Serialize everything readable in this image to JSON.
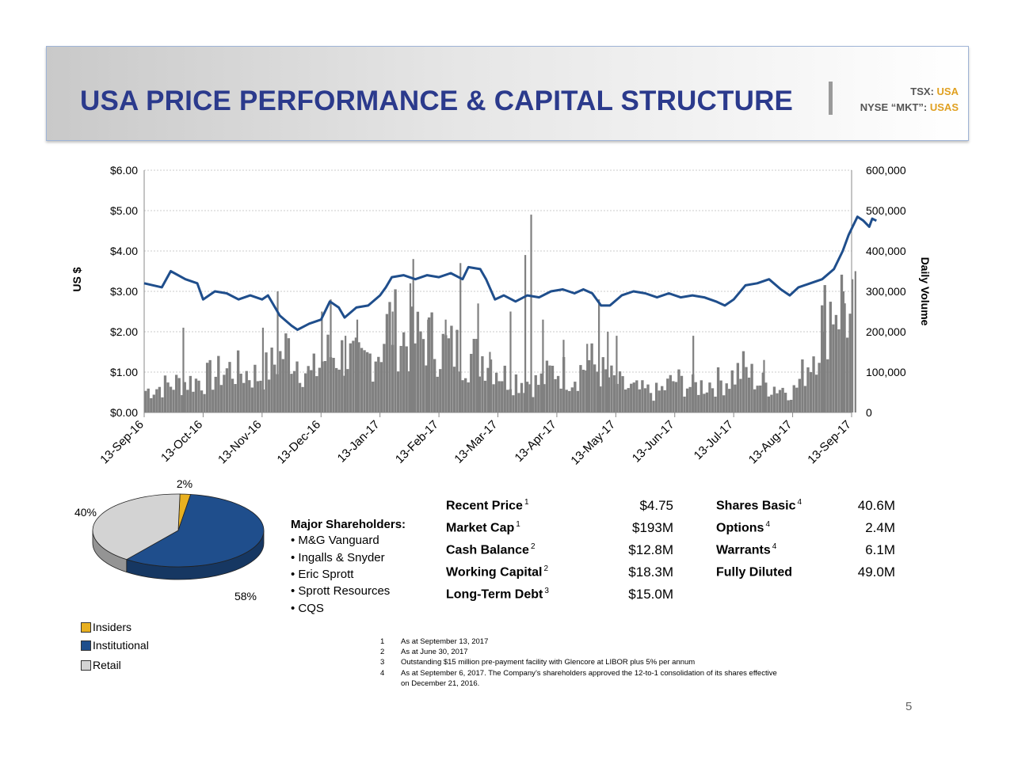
{
  "header": {
    "title": "USA PRICE PERFORMANCE & CAPITAL STRUCTURE",
    "tsx_label": "TSX:",
    "tsx_symbol": "USA",
    "nyse_label": "NYSE “MKT”:",
    "nyse_symbol": "USAS"
  },
  "chart_data": [
    {
      "type": "line",
      "ylabel": "US $",
      "y2label": "Daily Volume",
      "ylim": [
        0,
        6
      ],
      "y2lim": [
        0,
        600000
      ],
      "y_ticks": [
        "$0.00",
        "$1.00",
        "$2.00",
        "$3.00",
        "$4.00",
        "$5.00",
        "$6.00"
      ],
      "y2_ticks": [
        "0",
        "100,000",
        "200,000",
        "300,000",
        "400,000",
        "500,000",
        "600,000"
      ],
      "x_ticks": [
        "13-Sep-16",
        "13-Oct-16",
        "13-Nov-16",
        "13-Dec-16",
        "13-Jan-17",
        "13-Feb-17",
        "13-Mar-17",
        "13-Apr-17",
        "13-May-17",
        "13-Jun-17",
        "13-Jul-17",
        "13-Aug-17",
        "13-Sep-17"
      ],
      "grid": true,
      "series": [
        {
          "kind": "line",
          "color": "#1f4e8c",
          "points": [
            [
              0,
              3.2
            ],
            [
              0.3,
              3.1
            ],
            [
              0.45,
              3.5
            ],
            [
              0.7,
              3.3
            ],
            [
              0.9,
              3.2
            ],
            [
              1.0,
              2.8
            ],
            [
              1.2,
              3.0
            ],
            [
              1.4,
              2.95
            ],
            [
              1.6,
              2.8
            ],
            [
              1.8,
              2.9
            ],
            [
              2.0,
              2.8
            ],
            [
              2.1,
              2.9
            ],
            [
              2.3,
              2.4
            ],
            [
              2.5,
              2.15
            ],
            [
              2.6,
              2.05
            ],
            [
              2.8,
              2.2
            ],
            [
              3.0,
              2.3
            ],
            [
              3.15,
              2.75
            ],
            [
              3.3,
              2.6
            ],
            [
              3.4,
              2.35
            ],
            [
              3.6,
              2.6
            ],
            [
              3.8,
              2.65
            ],
            [
              4.0,
              2.9
            ],
            [
              4.1,
              3.1
            ],
            [
              4.2,
              3.35
            ],
            [
              4.4,
              3.4
            ],
            [
              4.6,
              3.3
            ],
            [
              4.8,
              3.4
            ],
            [
              5.0,
              3.35
            ],
            [
              5.2,
              3.45
            ],
            [
              5.4,
              3.3
            ],
            [
              5.5,
              3.6
            ],
            [
              5.7,
              3.55
            ],
            [
              5.8,
              3.3
            ],
            [
              5.95,
              2.8
            ],
            [
              6.1,
              2.9
            ],
            [
              6.3,
              2.75
            ],
            [
              6.5,
              2.9
            ],
            [
              6.7,
              2.85
            ],
            [
              6.9,
              3.0
            ],
            [
              7.1,
              3.05
            ],
            [
              7.3,
              2.95
            ],
            [
              7.45,
              3.05
            ],
            [
              7.6,
              2.95
            ],
            [
              7.75,
              2.65
            ],
            [
              7.9,
              2.65
            ],
            [
              8.1,
              2.9
            ],
            [
              8.3,
              3.0
            ],
            [
              8.5,
              2.95
            ],
            [
              8.7,
              2.85
            ],
            [
              8.9,
              2.95
            ],
            [
              9.1,
              2.85
            ],
            [
              9.3,
              2.9
            ],
            [
              9.5,
              2.85
            ],
            [
              9.7,
              2.75
            ],
            [
              9.85,
              2.65
            ],
            [
              10.0,
              2.8
            ],
            [
              10.2,
              3.15
            ],
            [
              10.4,
              3.2
            ],
            [
              10.6,
              3.3
            ],
            [
              10.8,
              3.05
            ],
            [
              10.95,
              2.9
            ],
            [
              11.1,
              3.1
            ],
            [
              11.3,
              3.2
            ],
            [
              11.5,
              3.3
            ],
            [
              11.7,
              3.55
            ],
            [
              11.85,
              4.0
            ],
            [
              11.95,
              4.4
            ],
            [
              12.1,
              4.85
            ],
            [
              12.2,
              4.75
            ],
            [
              12.3,
              4.6
            ],
            [
              12.35,
              4.8
            ],
            [
              12.42,
              4.75
            ]
          ]
        },
        {
          "kind": "bar",
          "color": "#808080",
          "volume_profile": [
            [
              0,
              60000
            ],
            [
              0.5,
              80000
            ],
            [
              1.0,
              90000
            ],
            [
              1.5,
              120000
            ],
            [
              2.0,
              100000
            ],
            [
              2.3,
              140000
            ],
            [
              2.5,
              180000
            ],
            [
              2.9,
              100000
            ],
            [
              3.2,
              160000
            ],
            [
              3.5,
              160000
            ],
            [
              3.8,
              130000
            ],
            [
              4.1,
              180000
            ],
            [
              4.3,
              250000
            ],
            [
              4.6,
              190000
            ],
            [
              4.9,
              210000
            ],
            [
              5.2,
              180000
            ],
            [
              5.5,
              170000
            ],
            [
              5.8,
              150000
            ],
            [
              6.0,
              160000
            ],
            [
              6.3,
              100000
            ],
            [
              6.6,
              90000
            ],
            [
              6.9,
              80000
            ],
            [
              7.2,
              120000
            ],
            [
              7.5,
              100000
            ],
            [
              7.8,
              140000
            ],
            [
              8.1,
              100000
            ],
            [
              8.4,
              70000
            ],
            [
              8.7,
              60000
            ],
            [
              9.0,
              55000
            ],
            [
              9.3,
              90000
            ],
            [
              9.6,
              70000
            ],
            [
              9.9,
              80000
            ],
            [
              10.2,
              90000
            ],
            [
              10.5,
              120000
            ],
            [
              10.8,
              80000
            ],
            [
              11.1,
              70000
            ],
            [
              11.4,
              60000
            ],
            [
              11.7,
              160000
            ],
            [
              11.9,
              250000
            ],
            [
              12.1,
              320000
            ],
            [
              12.3,
              300000
            ],
            [
              12.42,
              200000
            ]
          ],
          "volume_spikes": [
            [
              0.65,
              210000
            ],
            [
              2.0,
              210000
            ],
            [
              2.25,
              300000
            ],
            [
              3.0,
              250000
            ],
            [
              3.15,
              280000
            ],
            [
              3.4,
              190000
            ],
            [
              3.6,
              230000
            ],
            [
              4.2,
              250000
            ],
            [
              4.5,
              320000
            ],
            [
              4.55,
              380000
            ],
            [
              4.8,
              230000
            ],
            [
              5.1,
              230000
            ],
            [
              5.35,
              370000
            ],
            [
              5.65,
              270000
            ],
            [
              5.85,
              150000
            ],
            [
              6.2,
              250000
            ],
            [
              6.45,
              390000
            ],
            [
              6.55,
              490000
            ],
            [
              6.75,
              230000
            ],
            [
              7.1,
              180000
            ],
            [
              7.5,
              170000
            ],
            [
              7.7,
              280000
            ],
            [
              7.85,
              200000
            ],
            [
              8.0,
              190000
            ],
            [
              9.3,
              190000
            ],
            [
              10.5,
              130000
            ],
            [
              11.25,
              110000
            ],
            [
              11.5,
              200000
            ],
            [
              11.85,
              300000
            ],
            [
              12.0,
              330000
            ],
            [
              12.05,
              350000
            ]
          ]
        }
      ]
    },
    {
      "type": "pie",
      "slices": [
        {
          "name": "Insiders",
          "value": 2,
          "label": "2%",
          "color": "#e8b020"
        },
        {
          "name": "Institutional",
          "value": 58,
          "label": "58%",
          "color": "#1f4e8c"
        },
        {
          "name": "Retail",
          "value": 40,
          "label": "40%",
          "color": "#d3d3d3"
        }
      ]
    }
  ],
  "shareholders": {
    "title": "Major Shareholders:",
    "items": [
      "M&G Vanguard",
      "Ingalls & Snyder",
      "Eric Sprott",
      "Sprott Resources",
      "CQS"
    ]
  },
  "financials": [
    {
      "label": "Recent Price",
      "note": "1",
      "value": "$4.75"
    },
    {
      "label": "Market Cap",
      "note": "1",
      "value": "$193M"
    },
    {
      "label": "Cash Balance",
      "note": "2",
      "value": "$12.8M"
    },
    {
      "label": "Working Capital",
      "note": "2",
      "value": "$18.3M"
    },
    {
      "label": "Long-Term Debt",
      "note": "3",
      "value": "$15.0M"
    }
  ],
  "shares": [
    {
      "label": "Shares Basic",
      "note": "4",
      "value": "40.6M"
    },
    {
      "label": "Options",
      "note": "4",
      "value": "2.4M"
    },
    {
      "label": "Warrants",
      "note": "4",
      "value": "6.1M"
    },
    {
      "label": "Fully Diluted",
      "note": "",
      "value": "49.0M"
    }
  ],
  "footnotes": [
    {
      "num": "1",
      "text": "As at September 13, 2017"
    },
    {
      "num": "2",
      "text": "As at June 30, 2017"
    },
    {
      "num": "3",
      "text": "Outstanding $15 million pre-payment facility with Glencore at LIBOR plus 5% per annum"
    },
    {
      "num": "4",
      "text": "As at September 6, 2017. The Company’s shareholders approved the 12-to-1 consolidation of its shares effective"
    },
    {
      "num": "",
      "text": "on December 21, 2016."
    }
  ],
  "page_number": "5"
}
